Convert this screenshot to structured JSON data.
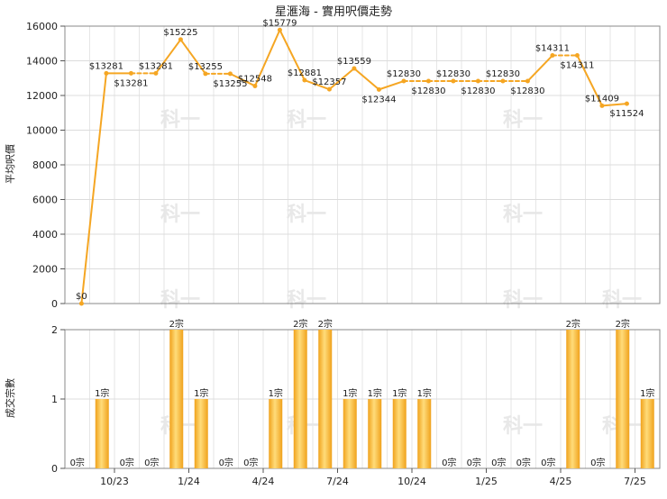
{
  "chart_data": [
    {
      "type": "line",
      "title": "星滙海 - 實用呎價走勢",
      "ylabel": "平均呎價",
      "ylim": [
        0,
        16000
      ],
      "yticks": [
        0,
        2000,
        4000,
        6000,
        8000,
        10000,
        12000,
        14000,
        16000
      ],
      "grid": true,
      "line_color": "#f5a623",
      "series": [
        {
          "values": [
            0,
            13281,
            13281,
            13281,
            15225,
            13255,
            13255,
            12548,
            15779,
            12881,
            12357,
            13559,
            12344,
            12830,
            12830,
            12830,
            12830,
            12830,
            12830,
            14311,
            14311,
            11409,
            11524
          ],
          "labels": [
            "$0",
            "$13281",
            "$13281",
            "$13281",
            "$15225",
            "$13255",
            "$13255",
            "$12548",
            "$15779",
            "$12881",
            "$12357",
            "$13559",
            "$12344",
            "$12830",
            "$12830",
            "$12830",
            "$12830",
            "$12830",
            "$12830",
            "$14311",
            "$14311",
            "$11409",
            "$11524"
          ],
          "dashed_segments": [
            2,
            5,
            13,
            14,
            15,
            16,
            17,
            19
          ]
        }
      ]
    },
    {
      "type": "bar",
      "ylabel": "成交宗數",
      "ylim": [
        0,
        2
      ],
      "yticks": [
        0,
        1,
        2
      ],
      "grid": true,
      "bar_color": "#f5a623",
      "xtick_labels": [
        {
          "index": 2,
          "label": "10/23"
        },
        {
          "index": 5,
          "label": "1/24"
        },
        {
          "index": 8,
          "label": "4/24"
        },
        {
          "index": 11,
          "label": "7/24"
        },
        {
          "index": 14,
          "label": "10/24"
        },
        {
          "index": 17,
          "label": "1/25"
        },
        {
          "index": 20,
          "label": "4/25"
        },
        {
          "index": 23,
          "label": "7/25"
        }
      ],
      "series": [
        {
          "values": [
            0,
            1,
            0,
            0,
            2,
            1,
            0,
            0,
            1,
            2,
            2,
            1,
            1,
            1,
            1,
            0,
            0,
            0,
            0,
            0,
            2,
            0,
            2,
            1
          ],
          "labels": [
            "0宗",
            "1宗",
            "0宗",
            "0宗",
            "2宗",
            "1宗",
            "0宗",
            "0宗",
            "1宗",
            "2宗",
            "2宗",
            "1宗",
            "1宗",
            "1宗",
            "1宗",
            "0宗",
            "0宗",
            "0宗",
            "0宗",
            "0宗",
            "2宗",
            "0宗",
            "2宗",
            "1宗"
          ]
        }
      ]
    }
  ]
}
